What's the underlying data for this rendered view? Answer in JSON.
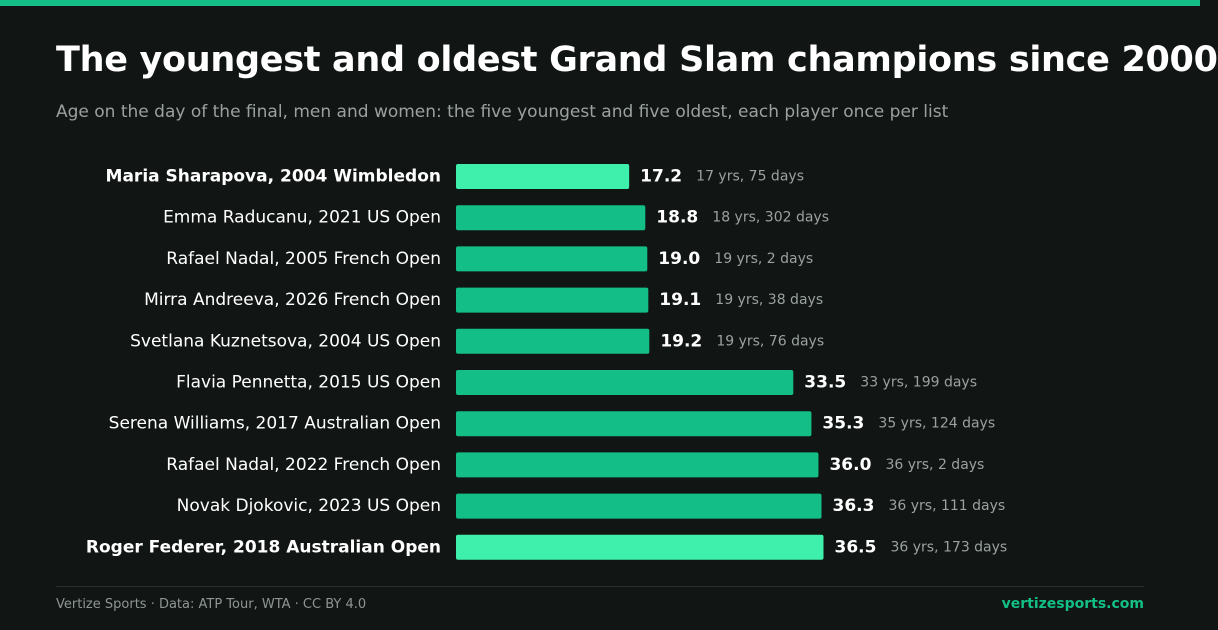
{
  "colors": {
    "background": "#111614",
    "accent": "#13bf86",
    "highlight": "#3ff0ac",
    "text": "#ffffff",
    "muted": "#9aa19e"
  },
  "header": {
    "title": "The youngest and oldest Grand Slam champions since 2000",
    "subtitle": "Age on the day of the final, men and women: the five youngest and five oldest, each player once per list"
  },
  "footer": {
    "credit": "Vertize Sports · Data: ATP Tour, WTA · CC BY 4.0",
    "site": "vertizesports.com"
  },
  "chart_data": {
    "type": "bar",
    "orientation": "horizontal",
    "title": "The youngest and oldest Grand Slam champions since 2000",
    "subtitle": "Age on the day of the final, men and women: the five youngest and five oldest, each player once per list",
    "xlim": [
      0,
      36.5
    ],
    "grid": false,
    "categories": [
      "Maria Sharapova, 2004 Wimbledon",
      "Emma Raducanu, 2021 US Open",
      "Rafael Nadal, 2005 French Open",
      "Mirra Andreeva, 2026 French Open",
      "Svetlana Kuznetsova, 2004 US Open",
      "Flavia Pennetta, 2015 US Open",
      "Serena Williams, 2017 Australian Open",
      "Rafael Nadal, 2022 French Open",
      "Novak Djokovic, 2023 US Open",
      "Roger Federer, 2018 Australian Open"
    ],
    "values": [
      17.2,
      18.8,
      19.0,
      19.1,
      19.2,
      33.5,
      35.3,
      36.0,
      36.3,
      36.5
    ],
    "value_labels": [
      "17.2",
      "18.8",
      "19.0",
      "19.1",
      "19.2",
      "33.5",
      "35.3",
      "36.0",
      "36.3",
      "36.5"
    ],
    "detail_labels": [
      "17 yrs, 75 days",
      "18 yrs, 302 days",
      "19 yrs, 2 days",
      "19 yrs, 38 days",
      "19 yrs, 76 days",
      "33 yrs, 199 days",
      "35 yrs, 124 days",
      "36 yrs, 2 days",
      "36 yrs, 111 days",
      "36 yrs, 173 days"
    ],
    "highlighted": [
      true,
      false,
      false,
      false,
      false,
      false,
      false,
      false,
      false,
      true
    ]
  }
}
